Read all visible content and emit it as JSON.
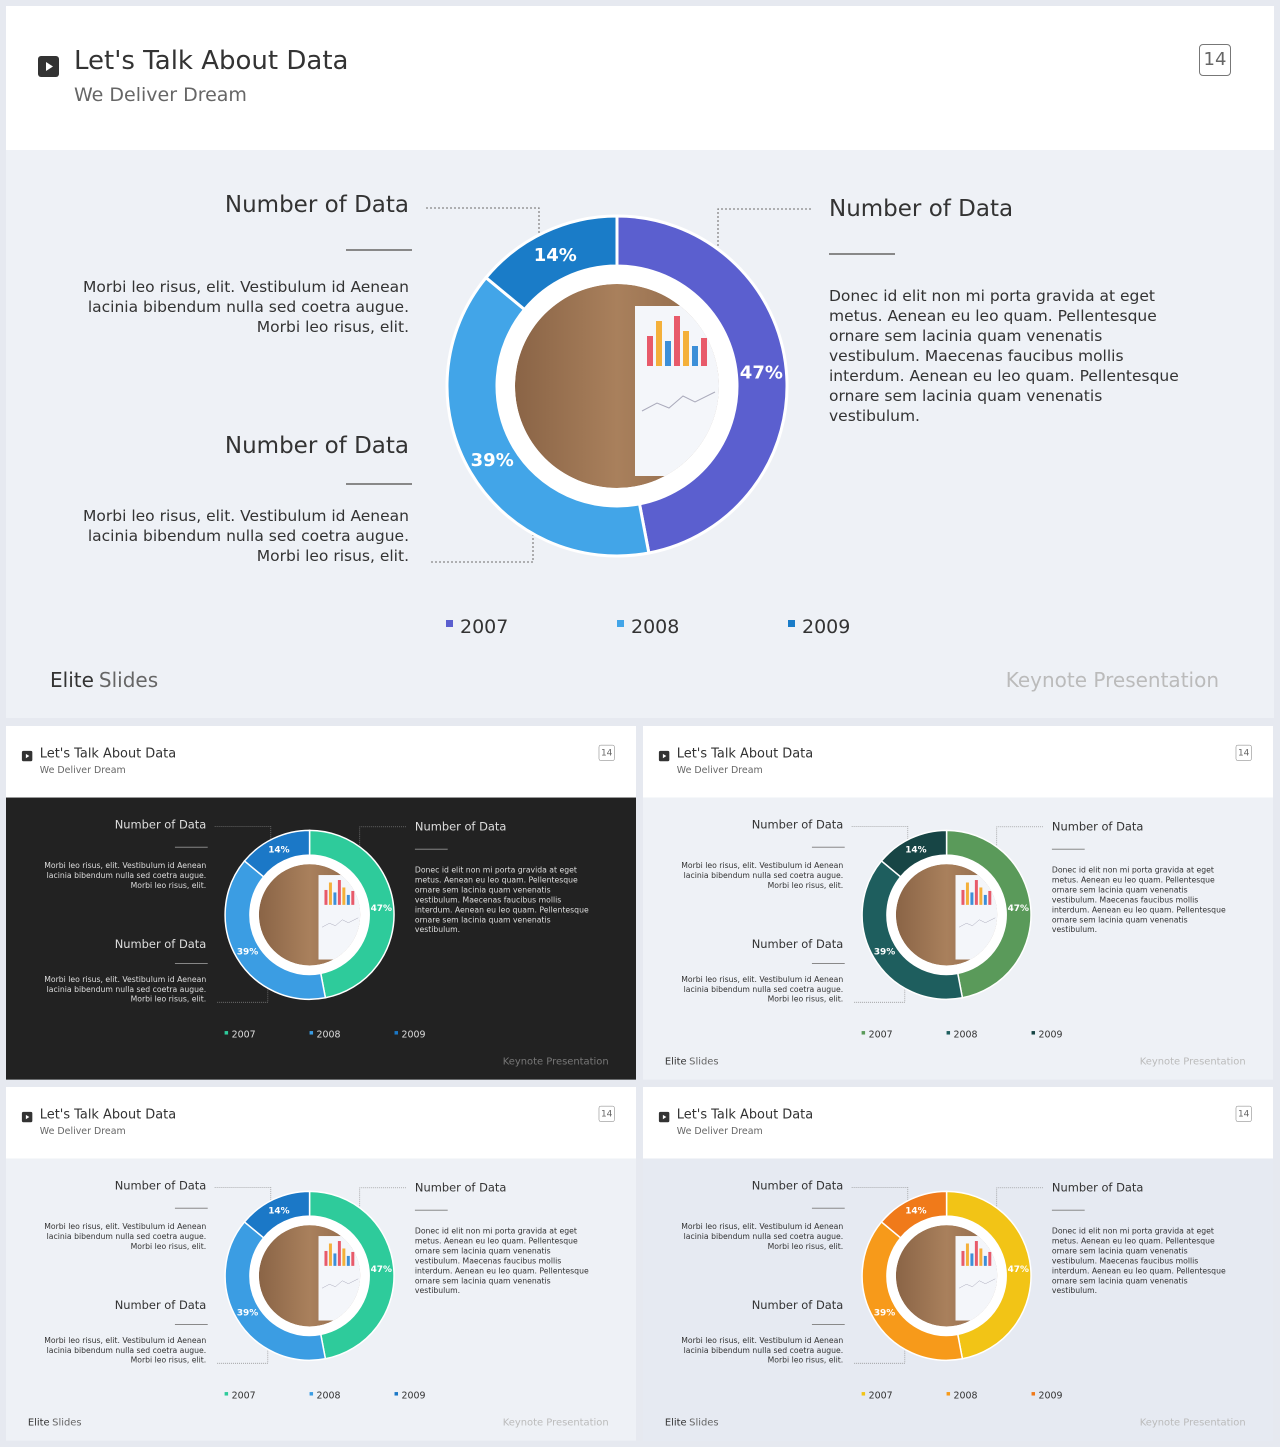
{
  "chart_data": [
    {
      "type": "donut",
      "title": "Let's Talk About Data",
      "subtitle": "We Deliver Dream",
      "page_number": 14,
      "annotations": [
        {
          "heading": "Number of Data",
          "text": "Morbi leo risus, elit. Vestibulum id Aenean lacinia bibendum nulla sed coetra augue. Morbi leo risus, elit."
        },
        {
          "heading": "Number of Data",
          "text": "Morbi leo risus, elit. Vestibulum id Aenean lacinia bibendum nulla sed coetra augue. Morbi leo risus, elit."
        },
        {
          "heading": "Number of Data",
          "text": "Donec id elit non mi porta gravida at eget metus. Aenean eu leo quam. Pellentesque ornare sem lacinia quam venenatis vestibulum. Maecenas faucibus mollis interdum. Aenean eu leo quam. Pellentesque ornare sem lacinia quam venenatis vestibulum."
        }
      ],
      "categories": [
        "2007",
        "2008",
        "2009"
      ],
      "values": [
        47,
        39,
        14
      ],
      "value_labels": [
        "47%",
        "39%",
        "14%"
      ],
      "colors": [
        "#5b5fcf",
        "#42a5e8",
        "#1a7cc8"
      ],
      "background": "#eef1f6",
      "text_color": "#333333",
      "brand": [
        "Elite",
        "Slides"
      ],
      "footer": "Keynote Presentation"
    },
    {
      "type": "donut",
      "title": "Let's Talk About Data",
      "subtitle": "We Deliver Dream",
      "page_number": 14,
      "annotations": [
        {
          "heading": "Number of Data",
          "text": "Morbi leo risus, elit. Vestibulum id Aenean lacinia bibendum nulla sed coetra augue. Morbi leo risus, elit."
        },
        {
          "heading": "Number of Data",
          "text": "Morbi leo risus, elit. Vestibulum id Aenean lacinia bibendum nulla sed coetra augue. Morbi leo risus, elit."
        },
        {
          "heading": "Number of Data",
          "text": "Donec id elit non mi porta gravida at eget metus. Aenean eu leo quam. Pellentesque ornare sem lacinia quam venenatis vestibulum. Maecenas faucibus mollis interdum. Aenean eu leo quam. Pellentesque ornare sem lacinia quam venenatis vestibulum."
        }
      ],
      "categories": [
        "2007",
        "2008",
        "2009"
      ],
      "values": [
        47,
        39,
        14
      ],
      "value_labels": [
        "47%",
        "39%",
        "14%"
      ],
      "colors": [
        "#2ecb9b",
        "#3b9de3",
        "#1b78c7"
      ],
      "background": "#222222",
      "text_color": "#dddddd",
      "footer": "Keynote Presentation"
    },
    {
      "type": "donut",
      "title": "Let's Talk About Data",
      "subtitle": "We Deliver Dream",
      "page_number": 14,
      "annotations": [
        {
          "heading": "Number of Data",
          "text": "Morbi leo risus, elit. Vestibulum id Aenean lacinia bibendum nulla sed coetra augue. Morbi leo risus, elit."
        },
        {
          "heading": "Number of Data",
          "text": "Morbi leo risus, elit. Vestibulum id Aenean lacinia bibendum nulla sed coetra augue. Morbi leo risus, elit."
        },
        {
          "heading": "Number of Data",
          "text": "Donec id elit non mi porta gravida at eget metus. Aenean eu leo quam. Pellentesque ornare sem lacinia quam venenatis vestibulum. Maecenas faucibus mollis interdum. Aenean eu leo quam. Pellentesque ornare sem lacinia quam venenatis vestibulum."
        }
      ],
      "categories": [
        "2007",
        "2008",
        "2009"
      ],
      "values": [
        47,
        39,
        14
      ],
      "value_labels": [
        "47%",
        "39%",
        "14%"
      ],
      "colors": [
        "#5a9a5a",
        "#1e5e5e",
        "#174545"
      ],
      "background": "#eef1f6",
      "text_color": "#333333",
      "brand": [
        "Elite",
        "Slides"
      ],
      "footer": "Keynote Presentation"
    },
    {
      "type": "donut",
      "title": "Let's Talk About Data",
      "subtitle": "We Deliver Dream",
      "page_number": 14,
      "annotations": [
        {
          "heading": "Number of Data",
          "text": "Morbi leo risus, elit. Vestibulum id Aenean lacinia bibendum nulla sed coetra augue. Morbi leo risus, elit."
        },
        {
          "heading": "Number of Data",
          "text": "Morbi leo risus, elit. Vestibulum id Aenean lacinia bibendum nulla sed coetra augue. Morbi leo risus, elit."
        },
        {
          "heading": "Number of Data",
          "text": "Donec id elit non mi porta gravida at eget metus. Aenean eu leo quam. Pellentesque ornare sem lacinia quam venenatis vestibulum. Maecenas faucibus mollis interdum. Aenean eu leo quam. Pellentesque ornare sem lacinia quam venenatis vestibulum."
        }
      ],
      "categories": [
        "2007",
        "2008",
        "2009"
      ],
      "values": [
        47,
        39,
        14
      ],
      "value_labels": [
        "47%",
        "39%",
        "14%"
      ],
      "colors": [
        "#2ecb9b",
        "#3b9de3",
        "#1b78c7"
      ],
      "background": "#eef1f6",
      "text_color": "#333333",
      "brand": [
        "Elite",
        "Slides"
      ],
      "footer": "Keynote Presentation"
    },
    {
      "type": "donut",
      "title": "Let's Talk About Data",
      "subtitle": "We Deliver Dream",
      "page_number": 14,
      "annotations": [
        {
          "heading": "Number of Data",
          "text": "Morbi leo risus, elit. Vestibulum id Aenean lacinia bibendum nulla sed coetra augue. Morbi leo risus, elit."
        },
        {
          "heading": "Number of Data",
          "text": "Morbi leo risus, elit. Vestibulum id Aenean lacinia bibendum nulla sed coetra augue. Morbi leo risus, elit."
        },
        {
          "heading": "Number of Data",
          "text": "Donec id elit non mi porta gravida at eget metus. Aenean eu leo quam. Pellentesque ornare sem lacinia quam venenatis vestibulum. Maecenas faucibus mollis interdum. Aenean eu leo quam. Pellentesque ornare sem lacinia quam venenatis vestibulum."
        }
      ],
      "categories": [
        "2007",
        "2008",
        "2009"
      ],
      "values": [
        47,
        39,
        14
      ],
      "value_labels": [
        "47%",
        "39%",
        "14%"
      ],
      "colors": [
        "#f2c416",
        "#f79a1a",
        "#f07a1a"
      ],
      "background": "#e6eaf2",
      "text_color": "#333333",
      "brand": [
        "Elite",
        "Slides"
      ],
      "footer": "Keynote Presentation"
    }
  ]
}
